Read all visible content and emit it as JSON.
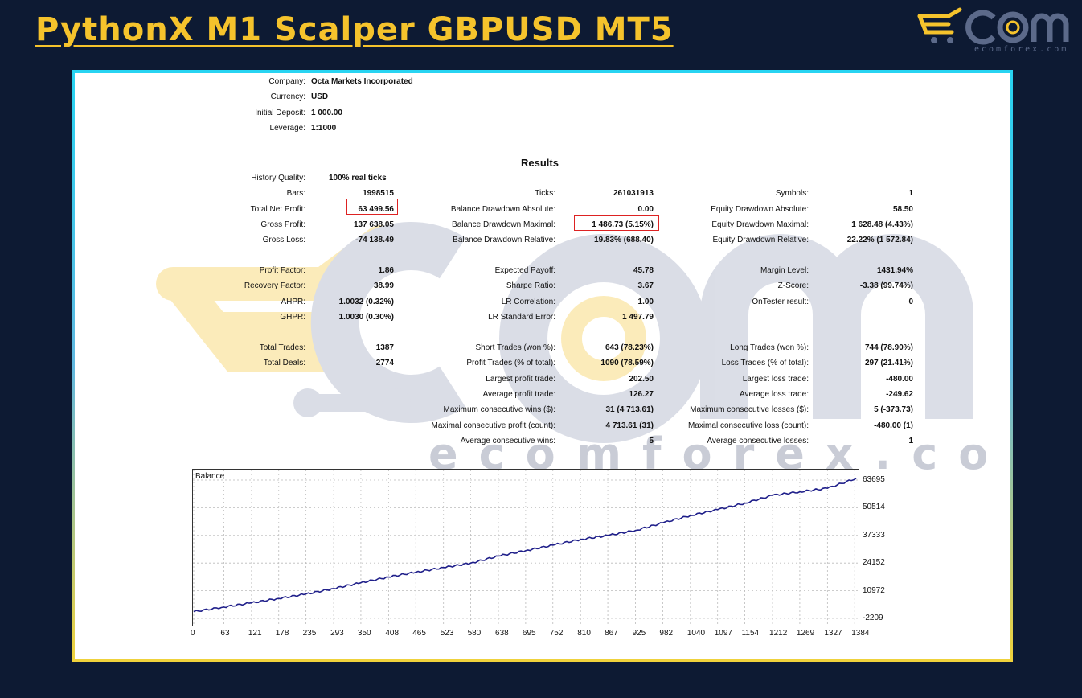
{
  "header": {
    "title": "PythonX M1 Scalper GBPUSD MT5"
  },
  "brand": {
    "name": "ecom",
    "tagline": "ecomforex.com",
    "accent": "#f5c32c"
  },
  "watermark": {
    "text": "ecomforex.com"
  },
  "account": {
    "items": [
      {
        "label": "Company:",
        "value": "Octa Markets Incorporated"
      },
      {
        "label": "Currency:",
        "value": "USD"
      },
      {
        "label": "Initial Deposit:",
        "value": "1 000.00"
      },
      {
        "label": "Leverage:",
        "value": "1:1000"
      }
    ]
  },
  "results": {
    "title": "Results",
    "history_quality": {
      "label": "History Quality:",
      "value": "100% real ticks"
    },
    "rows": [
      [
        {
          "label": "Bars:",
          "value": "1998515"
        },
        {
          "label": "Ticks:",
          "value": "261031913"
        },
        {
          "label": "Symbols:",
          "value": "1"
        }
      ],
      [
        {
          "label": "Total Net Profit:",
          "value": "63 499.56"
        },
        {
          "label": "Balance Drawdown Absolute:",
          "value": "0.00"
        },
        {
          "label": "Equity Drawdown Absolute:",
          "value": "58.50"
        }
      ],
      [
        {
          "label": "Gross Profit:",
          "value": "137 638.05"
        },
        {
          "label": "Balance Drawdown Maximal:",
          "value": "1 486.73 (5.15%)"
        },
        {
          "label": "Equity Drawdown Maximal:",
          "value": "1 628.48 (4.43%)"
        }
      ],
      [
        {
          "label": "Gross Loss:",
          "value": "-74 138.49"
        },
        {
          "label": "Balance Drawdown Relative:",
          "value": "19.83% (688.40)"
        },
        {
          "label": "Equity Drawdown Relative:",
          "value": "22.22% (1 572.84)"
        }
      ],
      [
        {
          "label": "Profit Factor:",
          "value": "1.86"
        },
        {
          "label": "Expected Payoff:",
          "value": "45.78"
        },
        {
          "label": "Margin Level:",
          "value": "1431.94%"
        }
      ],
      [
        {
          "label": "Recovery Factor:",
          "value": "38.99"
        },
        {
          "label": "Sharpe Ratio:",
          "value": "3.67"
        },
        {
          "label": "Z-Score:",
          "value": "-3.38 (99.74%)"
        }
      ],
      [
        {
          "label": "AHPR:",
          "value": "1.0032 (0.32%)"
        },
        {
          "label": "LR Correlation:",
          "value": "1.00"
        },
        {
          "label": "OnTester result:",
          "value": "0"
        }
      ],
      [
        {
          "label": "GHPR:",
          "value": "1.0030 (0.30%)"
        },
        {
          "label": "LR Standard Error:",
          "value": "1 497.79"
        },
        {
          "label": "",
          "value": ""
        }
      ],
      [
        {
          "label": "Total Trades:",
          "value": "1387"
        },
        {
          "label": "Short Trades (won %):",
          "value": "643 (78.23%)"
        },
        {
          "label": "Long Trades (won %):",
          "value": "744 (78.90%)"
        }
      ],
      [
        {
          "label": "Total Deals:",
          "value": "2774"
        },
        {
          "label": "Profit Trades (% of total):",
          "value": "1090 (78.59%)"
        },
        {
          "label": "Loss Trades (% of total):",
          "value": "297 (21.41%)"
        }
      ],
      [
        {
          "label": "",
          "value": ""
        },
        {
          "label": "Largest profit trade:",
          "value": "202.50"
        },
        {
          "label": "Largest loss trade:",
          "value": "-480.00"
        }
      ],
      [
        {
          "label": "",
          "value": ""
        },
        {
          "label": "Average profit trade:",
          "value": "126.27"
        },
        {
          "label": "Average loss trade:",
          "value": "-249.62"
        }
      ],
      [
        {
          "label": "",
          "value": ""
        },
        {
          "label": "Maximum consecutive wins ($):",
          "value": "31 (4 713.61)"
        },
        {
          "label": "Maximum consecutive losses ($):",
          "value": "5 (-373.73)"
        }
      ],
      [
        {
          "label": "",
          "value": ""
        },
        {
          "label": "Maximal consecutive profit (count):",
          "value": "4 713.61 (31)"
        },
        {
          "label": "Maximal consecutive loss (count):",
          "value": "-480.00 (1)"
        }
      ],
      [
        {
          "label": "",
          "value": ""
        },
        {
          "label": "Average consecutive wins:",
          "value": "5"
        },
        {
          "label": "Average consecutive losses:",
          "value": "1"
        }
      ]
    ],
    "highlight_color": "#dd2222"
  },
  "chart_data": {
    "type": "line",
    "title": "Balance",
    "x_ticks": [
      "0",
      "63",
      "121",
      "178",
      "235",
      "293",
      "350",
      "408",
      "465",
      "523",
      "580",
      "638",
      "695",
      "752",
      "810",
      "867",
      "925",
      "982",
      "1040",
      "1097",
      "1154",
      "1212",
      "1269",
      "1327",
      "1384"
    ],
    "y_ticks": [
      "63695",
      "50514",
      "37333",
      "24152",
      "10972",
      "-2209"
    ],
    "ylim": [
      -2209,
      63695
    ],
    "xlim": [
      0,
      1387
    ],
    "grid": true,
    "line_color": "#1f1f8a",
    "series": [
      {
        "x": [
          0,
          63,
          121,
          178,
          235,
          293,
          350,
          408,
          465,
          523,
          580,
          638,
          695,
          752,
          810,
          867,
          925,
          982,
          1040,
          1097,
          1154,
          1212,
          1269,
          1327,
          1387
        ],
        "values": [
          1000,
          3200,
          5200,
          7300,
          9400,
          12000,
          14800,
          17500,
          19800,
          22000,
          24100,
          27500,
          30100,
          32700,
          35400,
          37300,
          39700,
          43300,
          46800,
          49600,
          52700,
          56400,
          58100,
          59800,
          64500
        ]
      }
    ]
  }
}
